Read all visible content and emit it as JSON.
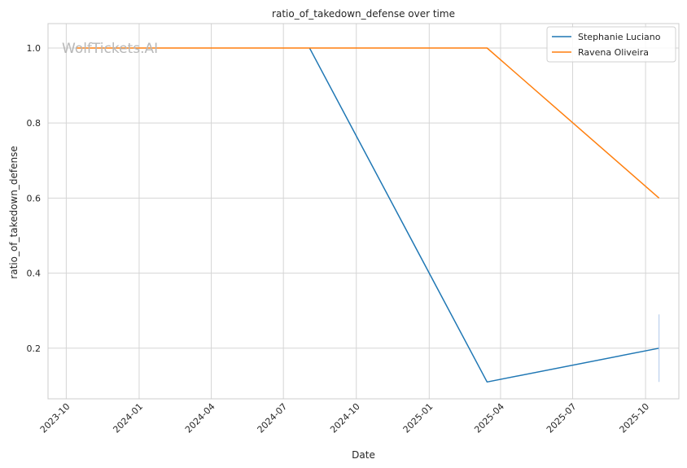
{
  "chart_data": {
    "type": "line",
    "title": "ratio_of_takedown_defense over time",
    "xlabel": "Date",
    "ylabel": "ratio_of_takedown_defense",
    "watermark": "WolfTickets.AI",
    "x_ticks": [
      "2023-10",
      "2024-01",
      "2024-04",
      "2024-07",
      "2024-10",
      "2025-01",
      "2025-04",
      "2025-07",
      "2025-10"
    ],
    "y_ticks": [
      "0.2",
      "0.4",
      "0.6",
      "0.8",
      "1.0"
    ],
    "ylim": [
      0.065,
      1.065
    ],
    "xlim": [
      "2023-09-08",
      "2025-11-12"
    ],
    "grid": true,
    "legend_position": "top-right",
    "series": [
      {
        "name": "Stephanie Luciano",
        "color": "#1f77b4",
        "x": [
          "2024-08-03",
          "2025-03-15",
          "2025-10-18"
        ],
        "y": [
          1.0,
          0.11,
          0.2
        ]
      },
      {
        "name": "Ravena Oliveira",
        "color": "#ff7f0e",
        "x": [
          "2023-10-14",
          "2025-03-15",
          "2025-10-18"
        ],
        "y": [
          1.0,
          1.0,
          0.6
        ]
      }
    ],
    "error_bar": {
      "x": "2025-10-18",
      "y_range": [
        0.11,
        0.29
      ],
      "color": "#aec7e8"
    }
  }
}
